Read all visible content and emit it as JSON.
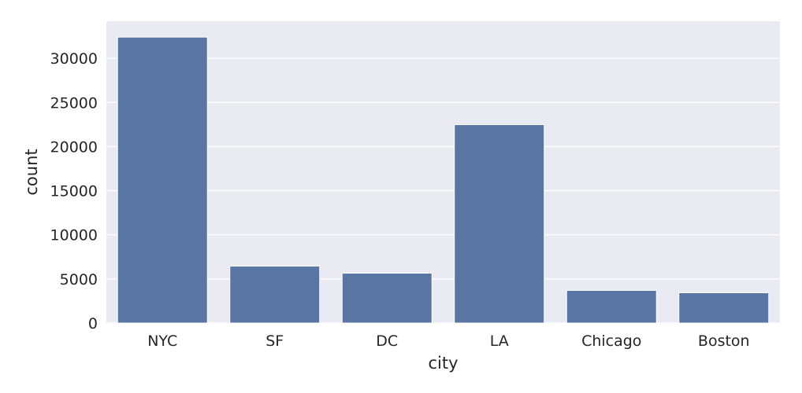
{
  "chart_data": {
    "type": "bar",
    "categories": [
      "NYC",
      "SF",
      "DC",
      "LA",
      "Chicago",
      "Boston"
    ],
    "values": [
      32400,
      6450,
      5650,
      22480,
      3700,
      3430
    ],
    "title": "",
    "xlabel": "city",
    "ylabel": "count",
    "ylim": [
      0,
      34200
    ],
    "yticks": [
      0,
      5000,
      10000,
      15000,
      20000,
      25000,
      30000
    ],
    "grid": true,
    "colors": {
      "bar": "#5875a4",
      "plot_background": "#eaeaf2",
      "grid": "#ffffff",
      "text": "#262626"
    }
  }
}
